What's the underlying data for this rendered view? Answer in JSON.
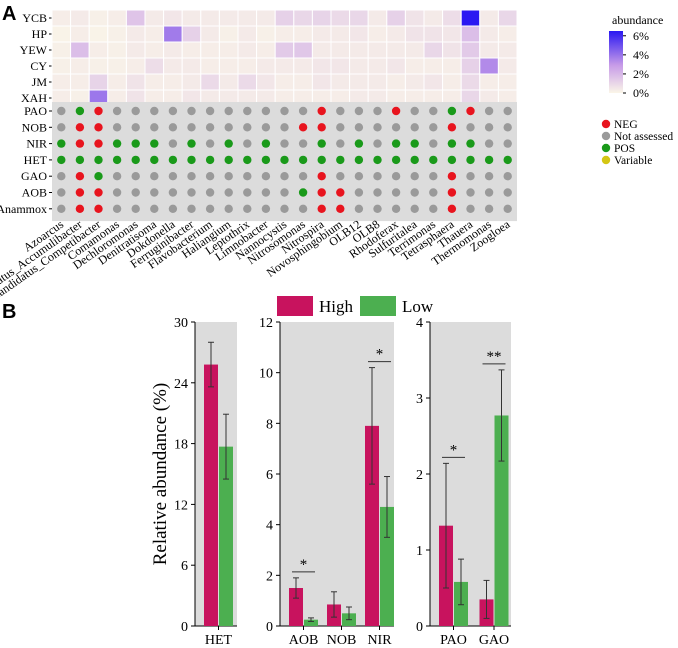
{
  "chart_data": [
    {
      "panel": "A",
      "type": "heatmap",
      "rows": [
        "YCB",
        "HP",
        "YEW",
        "CY",
        "JM",
        "XAH"
      ],
      "genera": [
        "Azoarcus",
        "Candidatus_Accumulibacter",
        "Candidatus_Competibacter",
        "Comamonas",
        "Dechloromonas",
        "Denitratisoma",
        "Dokdonella",
        "Ferruginibacter",
        "Flavobacterium",
        "Haliangium",
        "Leptothrix",
        "Limnobacter",
        "Nannocystis",
        "Nitrosomonas",
        "Nitrospira",
        "Novosphingobium",
        "OLB12",
        "OLB8",
        "Rhodoferax",
        "Sulfuritalea",
        "Terrimonas",
        "Tetrasphaera",
        "Thauera",
        "Thermomonas",
        "Zoogloea"
      ],
      "values": [
        [
          0.3,
          0.4,
          0.2,
          0.3,
          1.6,
          0.4,
          0.5,
          0.4,
          0.4,
          0.4,
          0.4,
          0.4,
          1.2,
          1.0,
          1.1,
          0.9,
          1.0,
          0.4,
          1.2,
          0.6,
          0.4,
          0.8,
          6.5,
          0.4,
          1.0
        ],
        [
          0.1,
          0.3,
          0.1,
          0.2,
          0.4,
          0.3,
          3.8,
          1.2,
          0.4,
          0.2,
          0.4,
          0.2,
          0.3,
          0.3,
          0.4,
          0.4,
          0.5,
          0.3,
          0.4,
          0.6,
          0.6,
          0.5,
          1.8,
          0.4,
          0.3
        ],
        [
          0.2,
          1.8,
          0.3,
          0.2,
          0.4,
          0.3,
          0.4,
          0.3,
          0.3,
          0.3,
          0.4,
          0.3,
          1.4,
          1.5,
          0.4,
          0.4,
          0.4,
          0.4,
          0.4,
          0.4,
          1.0,
          0.6,
          1.4,
          0.4,
          0.4
        ],
        [
          0.2,
          0.3,
          0.2,
          0.2,
          0.3,
          0.8,
          0.4,
          0.4,
          0.3,
          0.3,
          0.3,
          0.4,
          0.4,
          0.4,
          0.5,
          0.5,
          0.4,
          0.4,
          0.5,
          0.3,
          0.3,
          0.3,
          1.2,
          3.4,
          0.4
        ],
        [
          0.3,
          0.3,
          1.1,
          0.3,
          0.6,
          0.3,
          0.3,
          0.4,
          0.9,
          0.4,
          0.9,
          0.5,
          0.3,
          0.3,
          0.5,
          0.4,
          0.4,
          0.4,
          0.3,
          0.4,
          0.5,
          0.3,
          0.9,
          0.3,
          0.3
        ],
        [
          0.3,
          0.2,
          3.9,
          0.3,
          0.6,
          0.3,
          0.3,
          0.5,
          0.4,
          0.4,
          0.4,
          0.4,
          0.3,
          0.3,
          0.3,
          0.3,
          0.4,
          0.4,
          0.3,
          0.3,
          0.3,
          0.3,
          1.0,
          0.4,
          0.3
        ]
      ],
      "colorbar": {
        "title": "abundance",
        "ticks": [
          "6%",
          "4%",
          "2%",
          "0%"
        ],
        "range": [
          0,
          6.5
        ],
        "low_color": "#fbf6e8",
        "mid_color": "#c79be8",
        "high_color": "#2a18f2"
      },
      "traits": [
        "PAO",
        "NOB",
        "NIR",
        "HET",
        "GAO",
        "AOB",
        "Anammox"
      ],
      "trait_matrix": [
        [
          "N",
          "P",
          "G",
          "N",
          "N",
          "N",
          "N",
          "N",
          "N",
          "N",
          "N",
          "N",
          "N",
          "N",
          "G",
          "N",
          "N",
          "N",
          "G",
          "N",
          "N",
          "P",
          "G",
          "N",
          "N"
        ],
        [
          "N",
          "G",
          "G",
          "N",
          "N",
          "N",
          "N",
          "N",
          "N",
          "N",
          "N",
          "N",
          "N",
          "G",
          "G",
          "N",
          "N",
          "N",
          "N",
          "N",
          "N",
          "G",
          "N",
          "N",
          "N"
        ],
        [
          "P",
          "G",
          "G",
          "P",
          "P",
          "P",
          "N",
          "P",
          "N",
          "P",
          "N",
          "P",
          "N",
          "N",
          "P",
          "N",
          "P",
          "N",
          "P",
          "P",
          "N",
          "P",
          "P",
          "N",
          "N"
        ],
        [
          "P",
          "P",
          "P",
          "P",
          "P",
          "P",
          "P",
          "P",
          "P",
          "P",
          "P",
          "P",
          "P",
          "P",
          "P",
          "P",
          "P",
          "P",
          "P",
          "P",
          "P",
          "P",
          "P",
          "P",
          "P"
        ],
        [
          "N",
          "G",
          "P",
          "N",
          "N",
          "N",
          "N",
          "N",
          "N",
          "N",
          "N",
          "N",
          "N",
          "N",
          "G",
          "N",
          "N",
          "N",
          "N",
          "N",
          "N",
          "G",
          "N",
          "N",
          "N"
        ],
        [
          "N",
          "G",
          "G",
          "N",
          "N",
          "N",
          "N",
          "N",
          "N",
          "N",
          "N",
          "N",
          "N",
          "P",
          "G",
          "G",
          "N",
          "N",
          "N",
          "N",
          "N",
          "G",
          "N",
          "N",
          "N"
        ],
        [
          "N",
          "G",
          "G",
          "N",
          "N",
          "N",
          "N",
          "N",
          "N",
          "N",
          "N",
          "N",
          "N",
          "N",
          "G",
          "G",
          "N",
          "N",
          "N",
          "N",
          "N",
          "G",
          "N",
          "N",
          "N"
        ]
      ],
      "trait_legend": [
        {
          "code": "G",
          "label": "NEG",
          "color": "#e8141e"
        },
        {
          "code": "N",
          "label": "Not assessed",
          "color": "#9a9a9a"
        },
        {
          "code": "P",
          "label": "POS",
          "color": "#1a9a1a"
        },
        {
          "code": "V",
          "label": "Variable",
          "color": "#d4c614"
        }
      ]
    },
    {
      "panel": "B",
      "type": "bar",
      "ylabel": "Relative abundance (%)",
      "legend": [
        "High",
        "Low"
      ],
      "colors": {
        "High": "#c8135e",
        "Low": "#4caf50"
      },
      "subplots": [
        {
          "categories": [
            "HET"
          ],
          "ylim": [
            0,
            30
          ],
          "yticks": [
            "0",
            "6",
            "12",
            "18",
            "24",
            "30"
          ],
          "series": [
            {
              "name": "High",
              "values": [
                25.8
              ],
              "errors": [
                2.2
              ]
            },
            {
              "name": "Low",
              "values": [
                17.7
              ],
              "errors": [
                3.2
              ]
            }
          ],
          "significance": [
            "",
            ""
          ]
        },
        {
          "categories": [
            "AOB",
            "NOB",
            "NIR"
          ],
          "ylim": [
            0,
            12
          ],
          "yticks": [
            "0",
            "2",
            "4",
            "6",
            "8",
            "10",
            "12"
          ],
          "series": [
            {
              "name": "High",
              "values": [
                1.5,
                0.85,
                7.9
              ],
              "errors": [
                0.4,
                0.5,
                2.3
              ]
            },
            {
              "name": "Low",
              "values": [
                0.25,
                0.5,
                4.7
              ],
              "errors": [
                0.07,
                0.25,
                1.2
              ]
            }
          ],
          "significance": [
            "*",
            "",
            "*"
          ]
        },
        {
          "categories": [
            "PAO",
            "GAO"
          ],
          "ylim": [
            0,
            4
          ],
          "yticks": [
            "0",
            "1",
            "2",
            "3",
            "4"
          ],
          "series": [
            {
              "name": "High",
              "values": [
                1.32,
                0.35
              ],
              "errors": [
                0.82,
                0.25
              ]
            },
            {
              "name": "Low",
              "values": [
                0.58,
                2.77
              ],
              "errors": [
                0.3,
                0.6
              ]
            }
          ],
          "significance": [
            "*",
            "**"
          ]
        }
      ]
    }
  ],
  "panel_labels": {
    "a": "A",
    "b": "B"
  }
}
